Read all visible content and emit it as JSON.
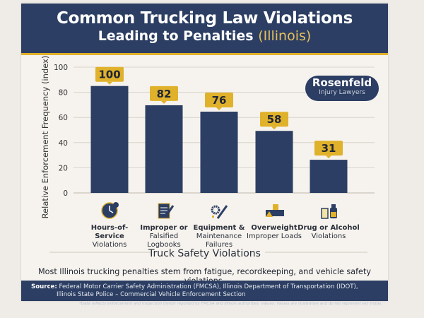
{
  "header": {
    "title_line1": "Common Trucking Law Violations",
    "title_line2": "Leading to Penalties",
    "title_highlight": "(Illinois)"
  },
  "logo": {
    "name": "Rosenfeld",
    "tagline": "Injury Lawyers"
  },
  "chart_data": {
    "type": "bar",
    "ylabel": "Relative Enforcement Frequency (index)",
    "xlabel": "Truck Safety Violations",
    "ylim": [
      0,
      100
    ],
    "yticks": [
      0,
      20,
      40,
      60,
      80,
      100
    ],
    "grid": true,
    "categories": [
      "Hours-of-Service Violations",
      "Improper or Falsified Logbooks",
      "Equipment & Maintenance Failures",
      "Overweight Improper Loads",
      "Drug or Alcohol Violations"
    ],
    "category_lines": [
      [
        "Hours-of-Service",
        "Violations"
      ],
      [
        "Improper or",
        "Falsified Logbooks"
      ],
      [
        "Equipment &",
        "Maintenance",
        "Failures"
      ],
      [
        "Overweight",
        "Improper Loads"
      ],
      [
        "Drug or Alcohol",
        "Violations"
      ]
    ],
    "category_icons": [
      "clock-icon",
      "logbook-pen-icon",
      "wrench-gear-icon",
      "overweight-truck-icon",
      "drink-bottle-icon"
    ],
    "values": [
      100,
      82,
      76,
      58,
      31
    ],
    "data_labels": [
      "100",
      "82",
      "76",
      "58",
      "31"
    ],
    "colors": {
      "bar": "#2c3e63",
      "label": "#e0b12a",
      "grid": "#d8d4cc"
    }
  },
  "note": "Most Illinois trucking penalties stem from fatigue, recordkeeping, and vehicle safety violations.",
  "footer": {
    "source_label": "Source:",
    "source_line1": "Federal Motor Carrier Safety Administration (FMCSA), Illinois Department of Transportation (IDOT),",
    "source_line2": "Illinois State Police – Commercial Vehicle Enforcement Section",
    "fine_print": "*Data reflects enforcement and inspection trends reported by FMCSA and Illinois authorities. Values: Values are illustrative and do not represent ext trotas."
  }
}
